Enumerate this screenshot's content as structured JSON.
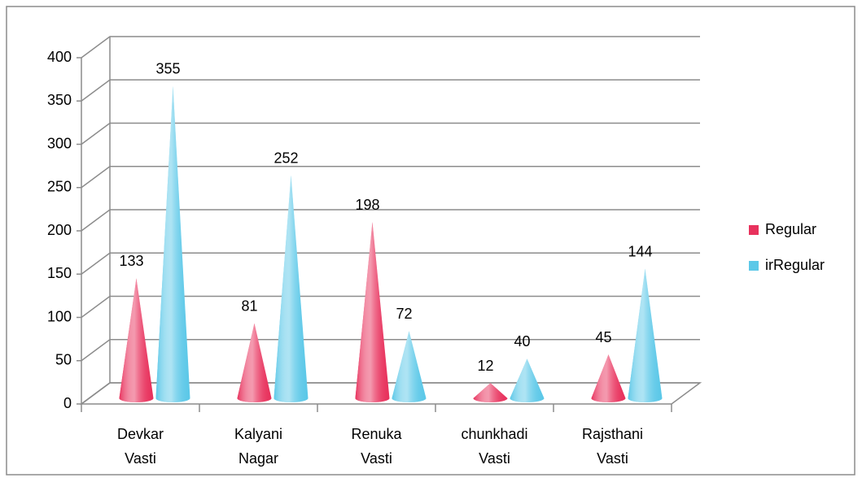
{
  "chart_data": {
    "type": "cone",
    "categories": [
      "Devkar Vasti",
      "Kalyani Nagar",
      "Renuka Vasti",
      "chunkhadi Vasti",
      "Rajsthani Vasti"
    ],
    "series": [
      {
        "name": "Regular",
        "color": "#e8325d",
        "values": [
          133,
          81,
          198,
          12,
          45
        ]
      },
      {
        "name": "irRegular",
        "color": "#5cc8e8",
        "values": [
          355,
          252,
          72,
          40,
          144
        ]
      }
    ],
    "ylim": [
      0,
      400
    ],
    "yticks": [
      0,
      50,
      100,
      150,
      200,
      250,
      300,
      350,
      400
    ],
    "grid": true,
    "legend": "right"
  }
}
